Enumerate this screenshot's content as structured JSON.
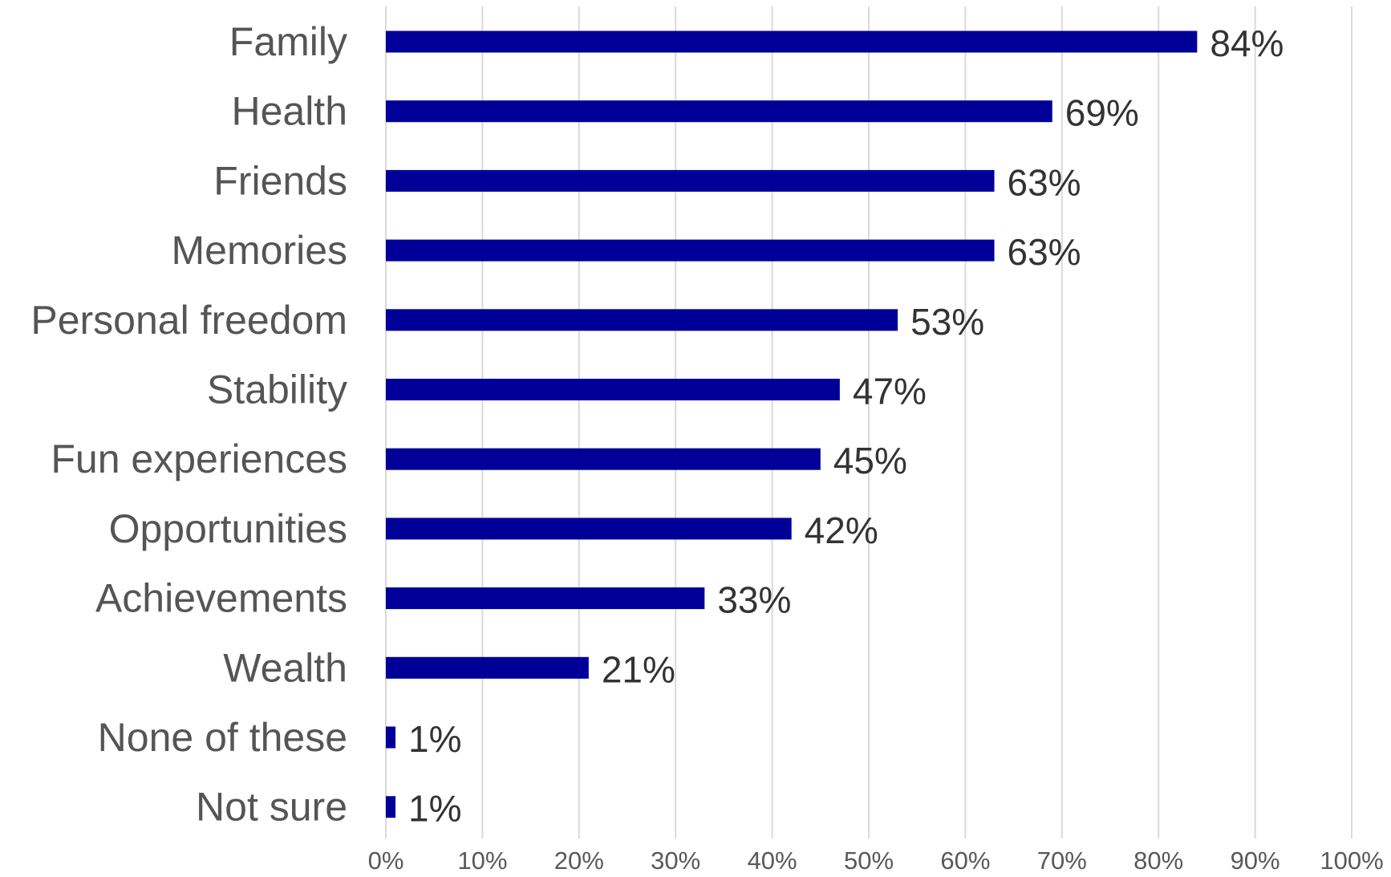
{
  "colors": {
    "bar": "#000099",
    "gridline": "#d9d9d9",
    "category_text": "#555555",
    "value_text": "#333333",
    "tick_text": "#595959"
  },
  "chart_data": {
    "type": "bar",
    "orientation": "horizontal",
    "categories": [
      "Family",
      "Health",
      "Friends",
      "Memories",
      "Personal freedom",
      "Stability",
      "Fun experiences",
      "Opportunities",
      "Achievements",
      "Wealth",
      "None of these",
      "Not sure"
    ],
    "values": [
      84,
      69,
      63,
      63,
      53,
      47,
      45,
      42,
      33,
      21,
      1,
      1
    ],
    "data_labels": [
      "84%",
      "69%",
      "63%",
      "63%",
      "53%",
      "47%",
      "45%",
      "42%",
      "33%",
      "21%",
      "1%",
      "1%"
    ],
    "xlim": [
      0,
      100
    ],
    "x_ticks": [
      "0%",
      "10%",
      "20%",
      "30%",
      "40%",
      "50%",
      "60%",
      "70%",
      "80%",
      "90%",
      "100%"
    ],
    "title": "",
    "xlabel": "",
    "ylabel": "",
    "grid": "vertical",
    "legend": "none"
  }
}
